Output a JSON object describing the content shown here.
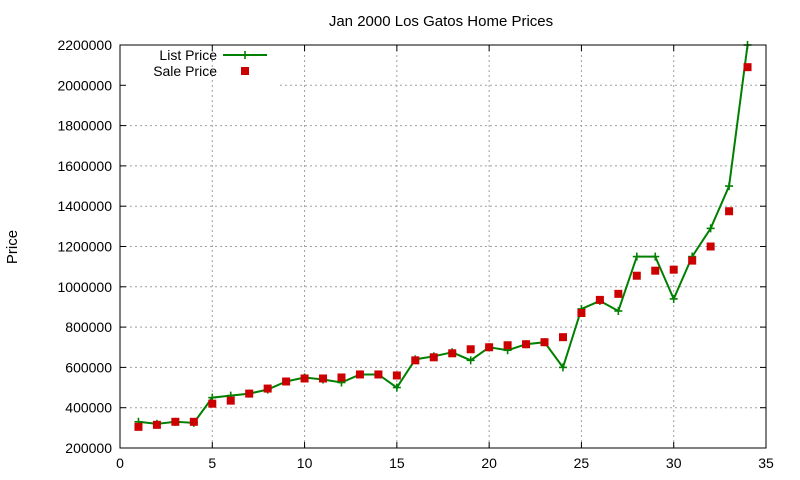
{
  "chart_data": {
    "type": "line",
    "title": "Jan 2000 Los Gatos Home Prices",
    "xlabel": "",
    "ylabel": "Price",
    "xlim": [
      0,
      35
    ],
    "ylim": [
      200000,
      2200000
    ],
    "xticks": [
      0,
      5,
      10,
      15,
      20,
      25,
      30,
      35
    ],
    "yticks": [
      200000,
      400000,
      600000,
      800000,
      1000000,
      1200000,
      1400000,
      1600000,
      1800000,
      2000000,
      2200000
    ],
    "grid": true,
    "legend_position": "top-left",
    "series": [
      {
        "name": "List Price",
        "style": "line-plus",
        "color": "#008000",
        "x": [
          1,
          2,
          3,
          4,
          5,
          6,
          7,
          8,
          9,
          10,
          11,
          12,
          13,
          14,
          15,
          16,
          17,
          18,
          19,
          20,
          21,
          22,
          23,
          24,
          25,
          26,
          27,
          28,
          29,
          30,
          31,
          32,
          33,
          34
        ],
        "values": [
          330000,
          320000,
          330000,
          325000,
          450000,
          460000,
          470000,
          490000,
          530000,
          550000,
          540000,
          525000,
          565000,
          565000,
          500000,
          640000,
          655000,
          675000,
          635000,
          700000,
          685000,
          715000,
          725000,
          600000,
          890000,
          930000,
          880000,
          1150000,
          1150000,
          940000,
          1150000,
          1290000,
          1500000,
          2200000
        ]
      },
      {
        "name": "Sale Price",
        "style": "square",
        "color": "#cc0000",
        "x": [
          1,
          2,
          3,
          4,
          5,
          6,
          7,
          8,
          9,
          10,
          11,
          12,
          13,
          14,
          15,
          16,
          17,
          18,
          19,
          20,
          21,
          22,
          23,
          24,
          25,
          26,
          27,
          28,
          29,
          30,
          31,
          32,
          33,
          34
        ],
        "values": [
          305000,
          315000,
          330000,
          330000,
          420000,
          435000,
          470000,
          495000,
          530000,
          545000,
          545000,
          550000,
          565000,
          565000,
          560000,
          635000,
          650000,
          670000,
          690000,
          700000,
          710000,
          715000,
          725000,
          750000,
          870000,
          935000,
          965000,
          1055000,
          1080000,
          1085000,
          1130000,
          1200000,
          1375000,
          2090000
        ]
      }
    ]
  }
}
